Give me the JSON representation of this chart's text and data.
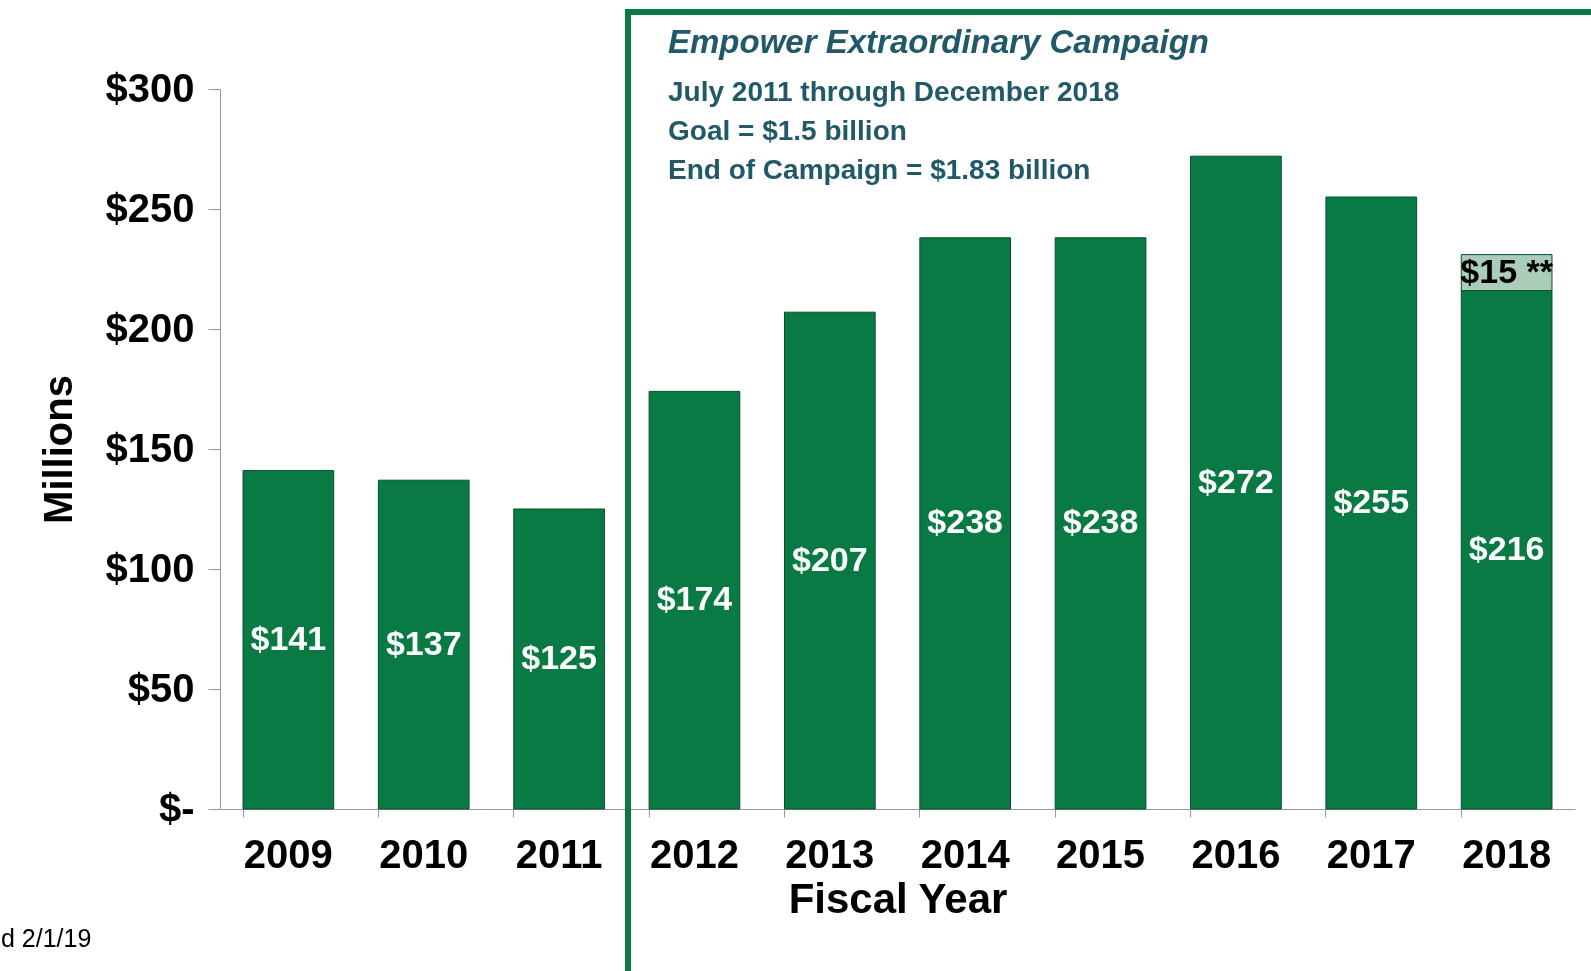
{
  "chart_data": {
    "type": "bar",
    "stacked": true,
    "title": "Empower Extraordinary Campaign",
    "xlabel": "Fiscal Year",
    "ylabel": "Millions",
    "categories": [
      "2009",
      "2010",
      "2011",
      "2012",
      "2013",
      "2014",
      "2015",
      "2016",
      "2017",
      "2018"
    ],
    "series": [
      {
        "color": "#0a7a45",
        "values": [
          141,
          137,
          125,
          174,
          207,
          238,
          238,
          272,
          255,
          216
        ],
        "value_labels": [
          "$141",
          "$137",
          "$125",
          "$174",
          "$207",
          "$238",
          "$238",
          "$272",
          "$255",
          "$216"
        ]
      },
      {
        "color": "#a9cdb8",
        "values": [
          null,
          null,
          null,
          null,
          null,
          null,
          null,
          null,
          null,
          15
        ],
        "value_labels": [
          null,
          null,
          null,
          null,
          null,
          null,
          null,
          null,
          null,
          "$15 **"
        ]
      }
    ],
    "ylim": [
      0,
      300
    ],
    "yticks": [
      {
        "value": 0,
        "label": "$-"
      },
      {
        "value": 50,
        "label": "$50"
      },
      {
        "value": 100,
        "label": "$100"
      },
      {
        "value": 150,
        "label": "$150"
      },
      {
        "value": 200,
        "label": "$200"
      },
      {
        "value": 250,
        "label": "$250"
      },
      {
        "value": 300,
        "label": "$300"
      }
    ],
    "grid": false,
    "annotations": [
      "July 2011 through December 2018",
      "Goal = $1.5 billion",
      "End of Campaign = $1.83 billion",
      "d 2/1/19"
    ]
  }
}
